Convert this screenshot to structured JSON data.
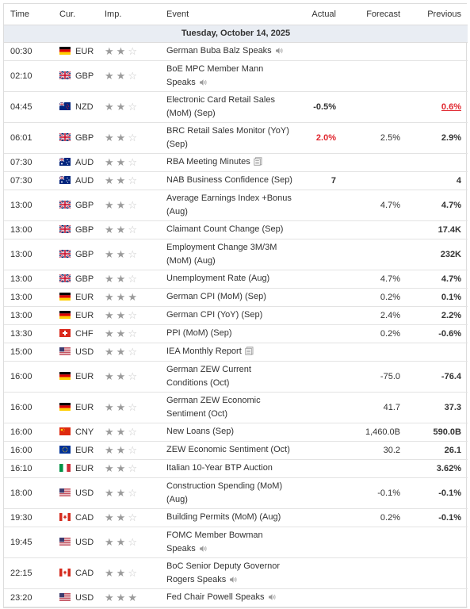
{
  "headers": {
    "time": "Time",
    "cur": "Cur.",
    "imp": "Imp.",
    "event": "Event",
    "actual": "Actual",
    "forecast": "Forecast",
    "previous": "Previous"
  },
  "date_label": "Tuesday, October 14, 2025",
  "icon_names": {
    "speech": "speaker-icon",
    "report": "document-icon",
    "star": "star-icon"
  },
  "colors": {
    "negative": "#e0262e",
    "date_row_bg": "#e9edf3"
  },
  "rows": [
    {
      "time": "00:30",
      "cur": "EUR",
      "flag": "de",
      "imp": 2,
      "l1": "German Buba Balz Speaks",
      "l2": "",
      "icon": "speech",
      "actual": "",
      "actual_red": false,
      "forecast": "",
      "previous": "",
      "previous_red": false,
      "h": 23
    },
    {
      "time": "02:10",
      "cur": "GBP",
      "flag": "gb",
      "imp": 2,
      "l1": "BoE MPC Member Mann",
      "l2": "Speaks",
      "icon": "speech",
      "actual": "",
      "actual_red": false,
      "forecast": "",
      "previous": "",
      "previous_red": false,
      "h": 39
    },
    {
      "time": "04:45",
      "cur": "NZD",
      "flag": "nz",
      "imp": 2,
      "l1": "Electronic Card Retail Sales",
      "l2": "(MoM) (Sep)",
      "icon": "",
      "actual": "-0.5%",
      "actual_red": false,
      "forecast": "",
      "previous": "0.6%",
      "previous_red": true,
      "h": 39
    },
    {
      "time": "06:01",
      "cur": "GBP",
      "flag": "gb",
      "imp": 2,
      "l1": "BRC Retail Sales Monitor (YoY)",
      "l2": "(Sep)",
      "icon": "",
      "actual": "2.0%",
      "actual_red": true,
      "forecast": "2.5%",
      "previous": "2.9%",
      "previous_red": false,
      "h": 39
    },
    {
      "time": "07:30",
      "cur": "AUD",
      "flag": "au",
      "imp": 2,
      "l1": "RBA Meeting Minutes",
      "l2": "",
      "icon": "report",
      "actual": "",
      "actual_red": false,
      "forecast": "",
      "previous": "",
      "previous_red": false,
      "h": 23
    },
    {
      "time": "07:30",
      "cur": "AUD",
      "flag": "au",
      "imp": 2,
      "l1": "NAB Business Confidence (Sep)",
      "l2": "",
      "icon": "",
      "actual": "7",
      "actual_red": false,
      "forecast": "",
      "previous": "4",
      "previous_red": false,
      "h": 23
    },
    {
      "time": "13:00",
      "cur": "GBP",
      "flag": "gb",
      "imp": 2,
      "l1": "Average Earnings Index +Bonus",
      "l2": "(Aug)",
      "icon": "",
      "actual": "",
      "actual_red": false,
      "forecast": "4.7%",
      "previous": "4.7%",
      "previous_red": false,
      "h": 39
    },
    {
      "time": "13:00",
      "cur": "GBP",
      "flag": "gb",
      "imp": 2,
      "l1": "Claimant Count Change (Sep)",
      "l2": "",
      "icon": "",
      "actual": "",
      "actual_red": false,
      "forecast": "",
      "previous": "17.4K",
      "previous_red": false,
      "h": 23
    },
    {
      "time": "13:00",
      "cur": "GBP",
      "flag": "gb",
      "imp": 2,
      "l1": "Employment Change 3M/3M",
      "l2": "(MoM) (Aug)",
      "icon": "",
      "actual": "",
      "actual_red": false,
      "forecast": "",
      "previous": "232K",
      "previous_red": false,
      "h": 39
    },
    {
      "time": "13:00",
      "cur": "GBP",
      "flag": "gb",
      "imp": 2,
      "l1": "Unemployment Rate (Aug)",
      "l2": "",
      "icon": "",
      "actual": "",
      "actual_red": false,
      "forecast": "4.7%",
      "previous": "4.7%",
      "previous_red": false,
      "h": 23
    },
    {
      "time": "13:00",
      "cur": "EUR",
      "flag": "de",
      "imp": 3,
      "l1": "German CPI (MoM) (Sep)",
      "l2": "",
      "icon": "",
      "actual": "",
      "actual_red": false,
      "forecast": "0.2%",
      "previous": "0.1%",
      "previous_red": false,
      "h": 23
    },
    {
      "time": "13:00",
      "cur": "EUR",
      "flag": "de",
      "imp": 2,
      "l1": "German CPI (YoY) (Sep)",
      "l2": "",
      "icon": "",
      "actual": "",
      "actual_red": false,
      "forecast": "2.4%",
      "previous": "2.2%",
      "previous_red": false,
      "h": 23
    },
    {
      "time": "13:30",
      "cur": "CHF",
      "flag": "ch",
      "imp": 2,
      "l1": "PPI (MoM) (Sep)",
      "l2": "",
      "icon": "",
      "actual": "",
      "actual_red": false,
      "forecast": "0.2%",
      "previous": "-0.6%",
      "previous_red": false,
      "h": 23
    },
    {
      "time": "15:00",
      "cur": "USD",
      "flag": "us",
      "imp": 2,
      "l1": "IEA Monthly Report",
      "l2": "",
      "icon": "report",
      "actual": "",
      "actual_red": false,
      "forecast": "",
      "previous": "",
      "previous_red": false,
      "h": 23
    },
    {
      "time": "16:00",
      "cur": "EUR",
      "flag": "de",
      "imp": 2,
      "l1": "German ZEW Current",
      "l2": "Conditions (Oct)",
      "icon": "",
      "actual": "",
      "actual_red": false,
      "forecast": "-75.0",
      "previous": "-76.4",
      "previous_red": false,
      "h": 39
    },
    {
      "time": "16:00",
      "cur": "EUR",
      "flag": "de",
      "imp": 2,
      "l1": "German ZEW Economic",
      "l2": "Sentiment (Oct)",
      "icon": "",
      "actual": "",
      "actual_red": false,
      "forecast": "41.7",
      "previous": "37.3",
      "previous_red": false,
      "h": 39
    },
    {
      "time": "16:00",
      "cur": "CNY",
      "flag": "cn",
      "imp": 2,
      "l1": "New Loans (Sep)",
      "l2": "",
      "icon": "",
      "actual": "",
      "actual_red": false,
      "forecast": "1,460.0B",
      "previous": "590.0B",
      "previous_red": false,
      "h": 23
    },
    {
      "time": "16:00",
      "cur": "EUR",
      "flag": "eu",
      "imp": 2,
      "l1": "ZEW Economic Sentiment (Oct)",
      "l2": "",
      "icon": "",
      "actual": "",
      "actual_red": false,
      "forecast": "30.2",
      "previous": "26.1",
      "previous_red": false,
      "h": 23
    },
    {
      "time": "16:10",
      "cur": "EUR",
      "flag": "it",
      "imp": 2,
      "l1": "Italian 10-Year BTP Auction",
      "l2": "",
      "icon": "",
      "actual": "",
      "actual_red": false,
      "forecast": "",
      "previous": "3.62%",
      "previous_red": false,
      "h": 23
    },
    {
      "time": "18:00",
      "cur": "USD",
      "flag": "us",
      "imp": 2,
      "l1": "Construction Spending (MoM)",
      "l2": "(Aug)",
      "icon": "",
      "actual": "",
      "actual_red": false,
      "forecast": "-0.1%",
      "previous": "-0.1%",
      "previous_red": false,
      "h": 39
    },
    {
      "time": "19:30",
      "cur": "CAD",
      "flag": "ca",
      "imp": 2,
      "l1": "Building Permits (MoM) (Aug)",
      "l2": "",
      "icon": "",
      "actual": "",
      "actual_red": false,
      "forecast": "0.2%",
      "previous": "-0.1%",
      "previous_red": false,
      "h": 23
    },
    {
      "time": "19:45",
      "cur": "USD",
      "flag": "us",
      "imp": 2,
      "l1": "FOMC Member Bowman",
      "l2": "Speaks",
      "icon": "speech",
      "actual": "",
      "actual_red": false,
      "forecast": "",
      "previous": "",
      "previous_red": false,
      "h": 39
    },
    {
      "time": "22:15",
      "cur": "CAD",
      "flag": "ca",
      "imp": 2,
      "l1": "BoC Senior Deputy Governor",
      "l2": "Rogers Speaks",
      "icon": "speech",
      "actual": "",
      "actual_red": false,
      "forecast": "",
      "previous": "",
      "previous_red": false,
      "h": 39
    },
    {
      "time": "23:20",
      "cur": "USD",
      "flag": "us",
      "imp": 3,
      "l1": "Fed Chair Powell Speaks",
      "l2": "",
      "icon": "speech",
      "actual": "",
      "actual_red": false,
      "forecast": "",
      "previous": "",
      "previous_red": false,
      "h": 23
    }
  ]
}
